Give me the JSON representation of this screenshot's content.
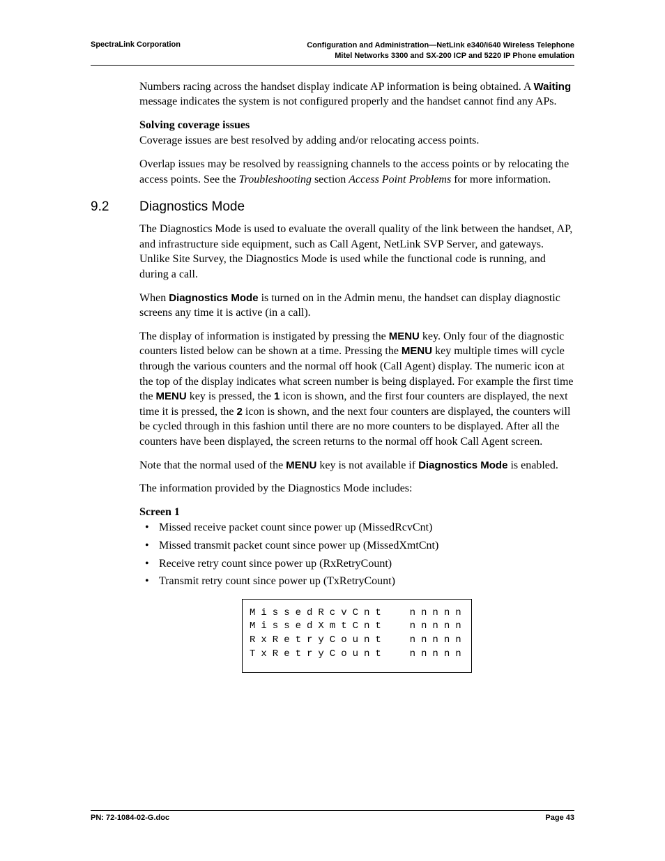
{
  "header": {
    "left": "SpectraLink Corporation",
    "right_line1": "Configuration and Administration—NetLink e340/i640 Wireless Telephone",
    "right_line2": "Mitel Networks 3300 and SX-200 ICP and 5220 IP Phone emulation"
  },
  "body": {
    "p1_a": "Numbers racing across the handset display indicate AP information is being obtained. A ",
    "p1_bold": "Waiting",
    "p1_b": " message indicates the system is not configured properly and the handset cannot find any APs.",
    "sub1": "Solving coverage issues",
    "p2": "Coverage issues are best resolved by adding and/or relocating access points.",
    "p3_a": "Overlap issues may be resolved by reassigning channels to the access points or by relocating the access points. See the ",
    "p3_i1": "Troubleshooting",
    "p3_b": " section ",
    "p3_i2": "Access Point Problems",
    "p3_c": " for more information.",
    "sec_num": "9.2",
    "sec_title": "Diagnostics Mode",
    "p4": "The Diagnostics Mode is used to evaluate the overall quality of the link between the handset, AP, and infrastructure side equipment, such as Call Agent, NetLink SVP Server, and gateways.  Unlike Site Survey, the Diagnostics Mode is used while the functional code is running, and during a call.",
    "p5_a": "When ",
    "p5_bold": "Diagnostics Mode",
    "p5_b": " is turned on in the Admin menu, the handset can display diagnostic screens any time it is active (in a call).",
    "p6_a": "The display of information is instigated by pressing the ",
    "p6_menu": "MENU",
    "p6_b": " key. Only four of the diagnostic counters listed below can be shown at a time. Pressing the ",
    "p6_c": " key multiple times will cycle through the various counters and the normal off hook (Call Agent) display. The numeric icon at the top of the display indicates what screen number is being displayed. For example the first time the ",
    "p6_d": " key is pressed, the ",
    "p6_1": "1",
    "p6_e": " icon is shown, and the first four counters are displayed, the next time it is pressed, the ",
    "p6_2": "2",
    "p6_f": " icon is shown, and the next four counters are displayed, the counters will be cycled through in this fashion until there are no more counters to be displayed. After all the counters have been displayed, the screen returns to the normal off hook Call Agent screen.",
    "p7_a": "Note that the normal used of the ",
    "p7_b": " key is not available if ",
    "p7_bold": "Diagnostics Mode",
    "p7_c": " is enabled.",
    "p8": "The information provided by the Diagnostics Mode includes:",
    "sub2": "Screen 1",
    "bullets": [
      "Missed receive packet count since power up (MissedRcvCnt)",
      "Missed transmit packet count since power up (MissedXmtCnt)",
      "Receive retry count since power up (RxRetryCount)",
      "Transmit retry count since power up (TxRetryCount)"
    ],
    "screen": {
      "l1": "MissedRcvCnt  nnnnn",
      "l2": "MissedXmtCnt  nnnnn",
      "l3": "RxRetryCount  nnnnn",
      "l4": "TxRetryCount  nnnnn"
    }
  },
  "footer": {
    "left": "PN: 72-1084-02-G.doc",
    "right": "Page 43"
  }
}
